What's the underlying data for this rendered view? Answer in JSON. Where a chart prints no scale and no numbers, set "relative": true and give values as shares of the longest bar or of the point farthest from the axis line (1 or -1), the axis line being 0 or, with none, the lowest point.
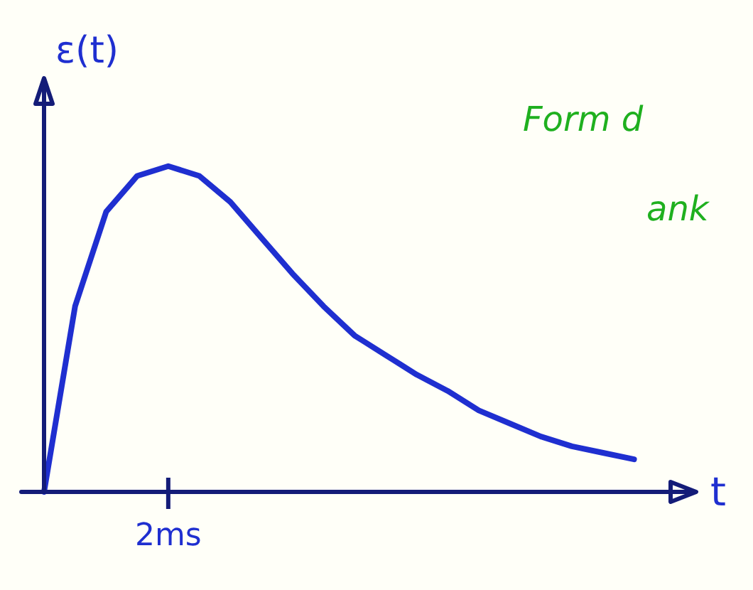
{
  "chart_data": {
    "type": "line",
    "relative": true,
    "xlabel": "t",
    "ylabel": "ε(t)",
    "categories": [
      null,
      null,
      null,
      null,
      null,
      null,
      null,
      null,
      null,
      null,
      null,
      null,
      null,
      null,
      null,
      null,
      null,
      null,
      null,
      null,
      null,
      null
    ],
    "series": [
      {
        "color": "#1f2fd0",
        "values": [
          0,
          0.57,
          0.86,
          0.97,
          1,
          0.97,
          0.89,
          0.78,
          0.67,
          0.57,
          0.48,
          0.42,
          0.36,
          0.31,
          0.25,
          0.21,
          0.17,
          0.14,
          0.12,
          0.1,
          null,
          null
        ]
      }
    ],
    "annotations": [
      "2ms",
      "Form d",
      "ank"
    ],
    "marker": "none",
    "grid": false
  }
}
